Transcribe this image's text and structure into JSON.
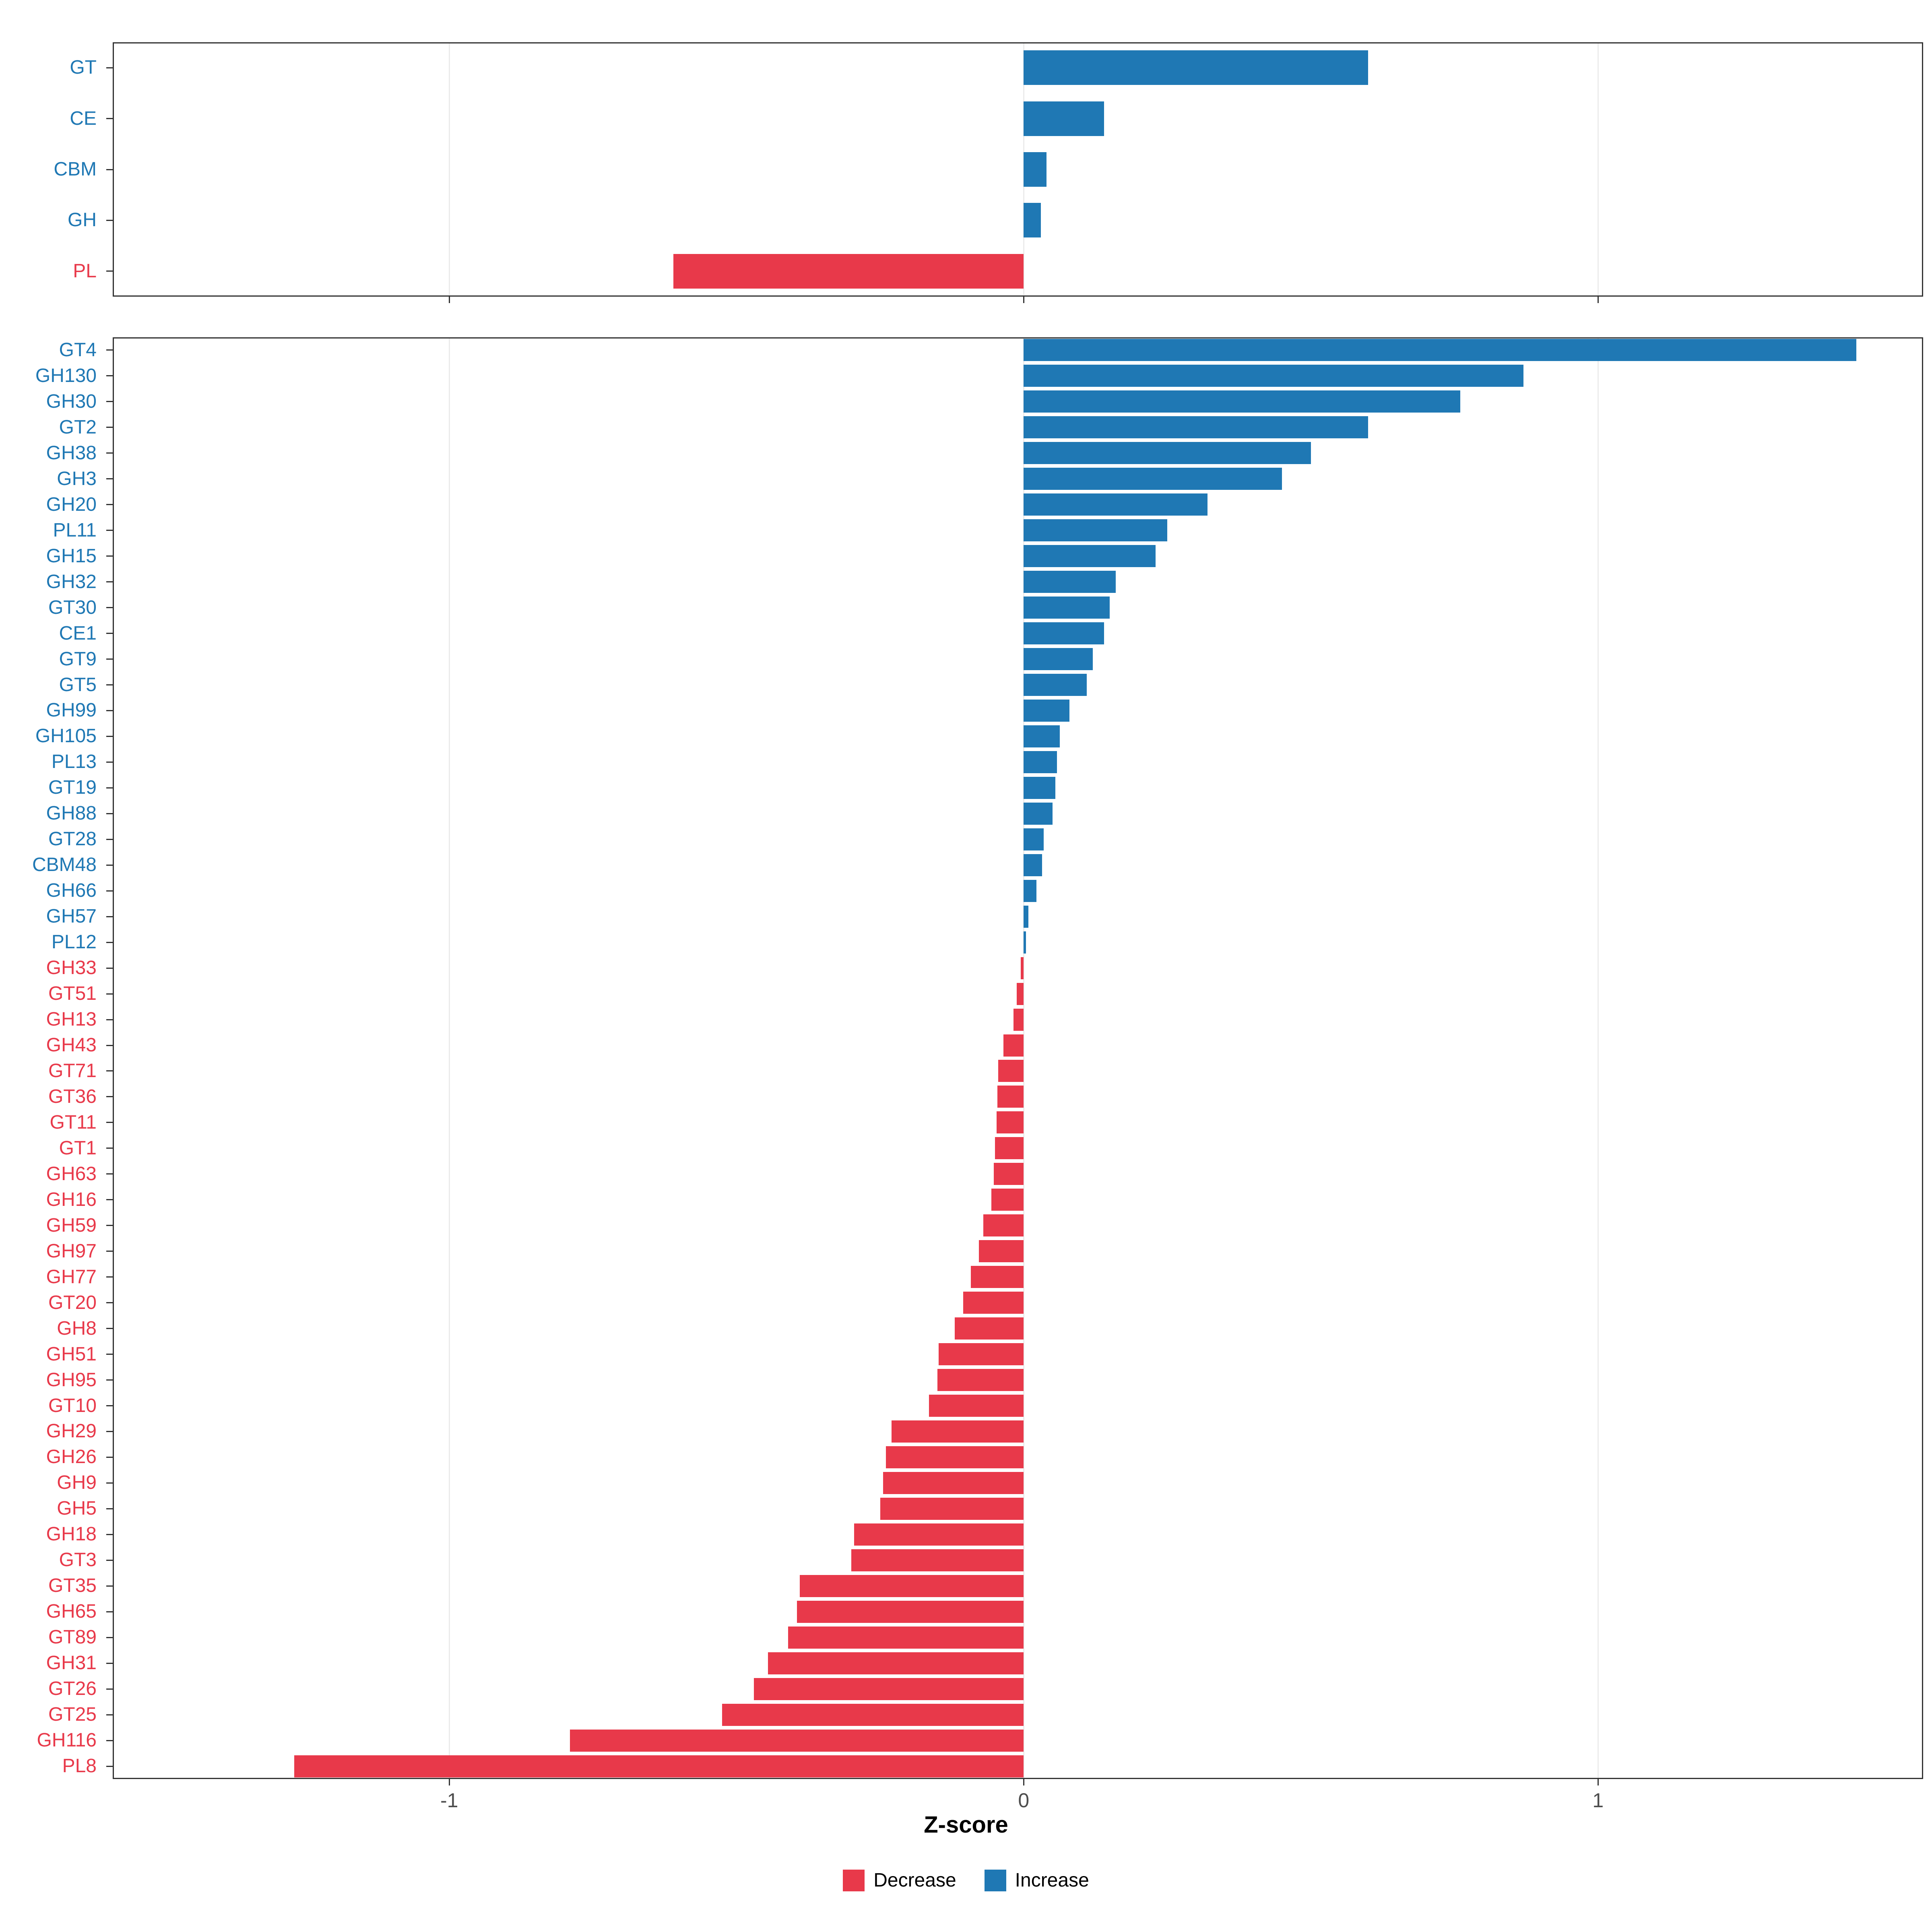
{
  "colors": {
    "increase": "#1f78b4",
    "decrease": "#e8394a",
    "grid_major": "#ebebeb",
    "panel_border": "#333333",
    "tick_text": "#4d4d4d"
  },
  "axis": {
    "title": "Z-score",
    "ticks": [
      -1,
      0,
      1
    ],
    "tick_labels": [
      "-1",
      "0",
      "1"
    ],
    "domain": [
      -1.586,
      1.566
    ]
  },
  "legend": [
    {
      "label": "Decrease",
      "color_key": "decrease"
    },
    {
      "label": "Increase",
      "color_key": "increase"
    }
  ],
  "chart_data": [
    {
      "type": "bar",
      "orientation": "horizontal",
      "panel": "cazyme-class",
      "xlabel": "Z-score",
      "xlim": [
        -1.586,
        1.566
      ],
      "grid": true,
      "categories": [
        "GT",
        "CE",
        "CBM",
        "GH",
        "PL"
      ],
      "values": [
        0.6,
        0.14,
        0.04,
        0.03,
        -0.61
      ]
    },
    {
      "type": "bar",
      "orientation": "horizontal",
      "panel": "cazyme-family",
      "xlabel": "Z-score",
      "xlim": [
        -1.586,
        1.566
      ],
      "grid": true,
      "categories": [
        "GT4",
        "GH130",
        "GH30",
        "GT2",
        "GH38",
        "GH3",
        "GH20",
        "PL11",
        "GH15",
        "GH32",
        "GT30",
        "CE1",
        "GT9",
        "GT5",
        "GH99",
        "GH105",
        "PL13",
        "GT19",
        "GH88",
        "GT28",
        "CBM48",
        "GH66",
        "GH57",
        "PL12",
        "GH33",
        "GT51",
        "GH13",
        "GH43",
        "GT71",
        "GT36",
        "GT11",
        "GT1",
        "GH63",
        "GH16",
        "GH59",
        "GH97",
        "GH77",
        "GT20",
        "GH8",
        "GH51",
        "GH95",
        "GT10",
        "GH29",
        "GH26",
        "GH9",
        "GH5",
        "GH18",
        "GT3",
        "GT35",
        "GH65",
        "GT89",
        "GH31",
        "GT26",
        "GT25",
        "GH116",
        "PL8"
      ],
      "values": [
        1.45,
        0.87,
        0.76,
        0.6,
        0.5,
        0.45,
        0.32,
        0.25,
        0.23,
        0.16,
        0.15,
        0.14,
        0.12,
        0.11,
        0.08,
        0.063,
        0.058,
        0.055,
        0.05,
        0.035,
        0.032,
        0.022,
        0.008,
        0.004,
        -0.005,
        -0.012,
        -0.018,
        -0.035,
        -0.044,
        -0.046,
        -0.047,
        -0.05,
        -0.052,
        -0.056,
        -0.07,
        -0.078,
        -0.092,
        -0.105,
        -0.12,
        -0.148,
        -0.15,
        -0.165,
        -0.23,
        -0.24,
        -0.245,
        -0.25,
        -0.295,
        -0.3,
        -0.39,
        -0.395,
        -0.41,
        -0.445,
        -0.47,
        -0.525,
        -0.79,
        -1.27
      ]
    }
  ]
}
